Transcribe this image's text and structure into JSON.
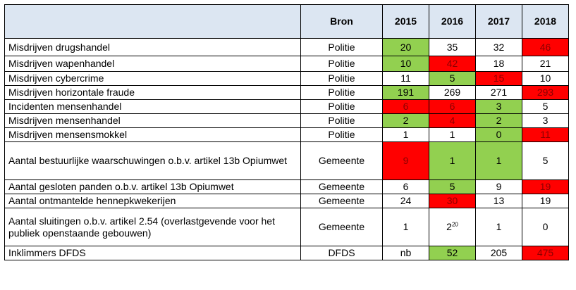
{
  "table": {
    "columns": [
      "",
      "Bron",
      "2015",
      "2016",
      "2017",
      "2018"
    ],
    "colors": {
      "header_bg": "#dce6f2",
      "green": "#92d050",
      "red": "#ff0000",
      "red_text": "#8b0000"
    },
    "rows": [
      {
        "label": "Misdrijven drugshandel",
        "source": "Politie",
        "values": [
          "20",
          "35",
          "32",
          "46"
        ],
        "status": [
          "green",
          "",
          "",
          "red"
        ]
      },
      {
        "label": "Misdrijven wapenhandel",
        "source": "Politie",
        "values": [
          "10",
          "42",
          "18",
          "21"
        ],
        "status": [
          "green",
          "red",
          "",
          ""
        ]
      },
      {
        "label": "Misdrijven cybercrime",
        "source": "Politie",
        "values": [
          "11",
          "5",
          "15",
          "10"
        ],
        "status": [
          "",
          "green",
          "red",
          ""
        ]
      },
      {
        "label": "Misdrijven horizontale fraude",
        "source": "Politie",
        "values": [
          "191",
          "269",
          "271",
          "293"
        ],
        "status": [
          "green",
          "",
          "",
          "red"
        ]
      },
      {
        "label": "Incidenten mensenhandel",
        "source": "Politie",
        "values": [
          "6",
          "6",
          "3",
          "5"
        ],
        "status": [
          "red",
          "red",
          "green",
          ""
        ]
      },
      {
        "label": "Misdrijven mensenhandel",
        "source": "Politie",
        "values": [
          "2",
          "4",
          "2",
          "3"
        ],
        "status": [
          "green",
          "red",
          "green",
          ""
        ]
      },
      {
        "label": "Misdrijven mensensmokkel",
        "source": "Politie",
        "values": [
          "1",
          "1",
          "0",
          "11"
        ],
        "status": [
          "",
          "",
          "green",
          "red"
        ]
      },
      {
        "label": "Aantal bestuurlijke waarschuwingen o.b.v. artikel 13b Opiumwet",
        "source": "Gemeente",
        "values": [
          "9",
          "1",
          "1",
          "5"
        ],
        "status": [
          "red",
          "green",
          "green",
          ""
        ]
      },
      {
        "label": "Aantal gesloten panden o.b.v. artikel 13b Opiumwet",
        "source": "Gemeente",
        "values": [
          "6",
          "5",
          "9",
          "19"
        ],
        "status": [
          "",
          "green",
          "",
          "red"
        ]
      },
      {
        "label": "Aantal ontmantelde hennepkwekerijen",
        "source": "Gemeente",
        "values": [
          "24",
          "30",
          "13",
          "19"
        ],
        "status": [
          "",
          "red",
          "",
          ""
        ]
      },
      {
        "label": "Aantal sluitingen o.b.v. artikel 2.54 (overlastgevende voor het publiek openstaande gebouwen)",
        "source": "Gemeente",
        "values": [
          "1",
          "2",
          "1",
          "0"
        ],
        "status": [
          "",
          "",
          "",
          ""
        ],
        "footnote": "20"
      },
      {
        "label": "Inklimmers DFDS",
        "source": "DFDS",
        "values": [
          "nb",
          "52",
          "205",
          "475"
        ],
        "status": [
          "",
          "green",
          "",
          "red"
        ]
      }
    ]
  }
}
